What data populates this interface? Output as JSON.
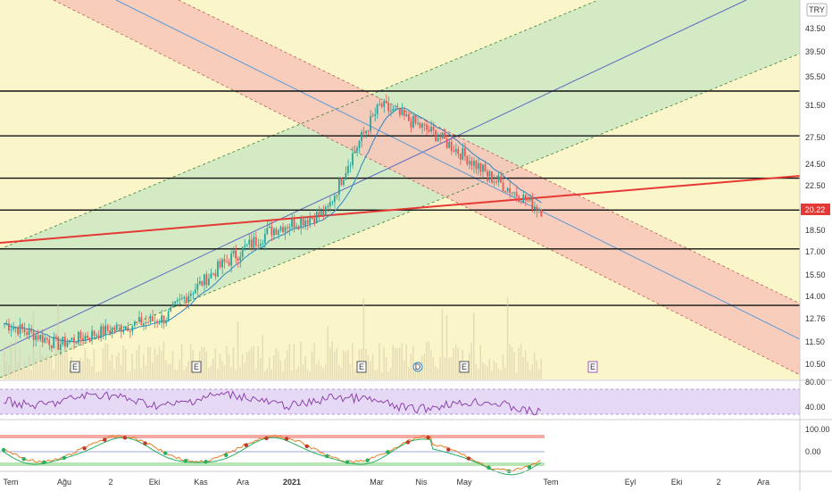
{
  "colors": {
    "price_up": "#26a69a",
    "price_down": "#ef5350",
    "mid_channel_line": "#5b9bd5",
    "trend_line": "#e53935",
    "uptrend_zone": "#cfe9c4",
    "downtrend_zone": "#f7c6b8",
    "neutral_zone": "#fbf6c9",
    "rsi_band": "#e6d9f5",
    "rsi_line": "#8e44ad",
    "price_tag": "#e53935",
    "volume": "#d9c9ab"
  },
  "header": {
    "currency": "TRY"
  },
  "price_axis": {
    "ticks": [
      "43.50",
      "39.50",
      "35.50",
      "31.50",
      "27.50",
      "24.50",
      "22.50",
      "20.22",
      "18.50",
      "17.00",
      "15.50",
      "14.00",
      "12.76",
      "11.50",
      "10.50"
    ]
  },
  "price_tag": {
    "value": "20.22"
  },
  "rsi_axis": {
    "ticks": [
      "80.00",
      "40.00"
    ]
  },
  "osc_axis": {
    "ticks": [
      "100.00",
      "0.00"
    ]
  },
  "time_axis": {
    "labels": [
      "Tem",
      "Ağu",
      "2",
      "Eki",
      "Kas",
      "Ara",
      "2021",
      "Mar",
      "Nis",
      "May",
      "Tem",
      "Eyl",
      "Eki",
      "2",
      "Ara"
    ]
  },
  "events": [
    "E",
    "E",
    "E",
    "D",
    "E",
    "E"
  ],
  "chart_data": {
    "type": "line",
    "title": "",
    "xlabel": "",
    "ylabel": "",
    "ylim": [
      10.0,
      45.5
    ],
    "horizontal_levels": [
      33.5,
      27.7,
      23.2,
      20.2,
      17.2,
      13.5
    ],
    "series": [
      {
        "x": [
          "Tem",
          "Ağu",
          "2",
          "Eki",
          "Kas",
          "Ara",
          "2021",
          "Mar",
          "Nis",
          "May",
          "Tem"
        ],
        "values": [
          12.5,
          11.4,
          12.2,
          12.8,
          16.0,
          18.6,
          20.0,
          31.5,
          28.0,
          23.5,
          20.22
        ]
      }
    ]
  }
}
